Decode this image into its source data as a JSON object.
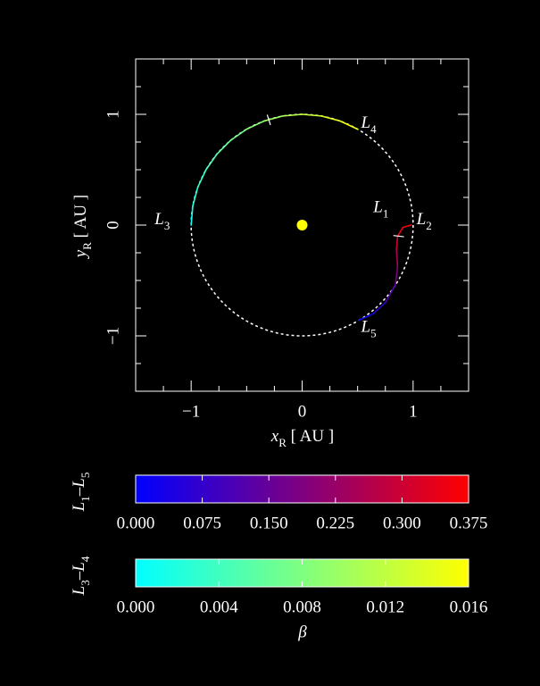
{
  "chart_data": {
    "type": "line",
    "xlabel": [
      "x",
      "R",
      " [ AU ]"
    ],
    "ylabel": [
      "y",
      "R",
      " [ AU ]"
    ],
    "xlim": [
      -1.5,
      1.5
    ],
    "ylim": [
      -1.5,
      1.5
    ],
    "xticks": [
      {
        "value": -1,
        "label": "−1"
      },
      0,
      1
    ],
    "yticks": [
      {
        "value": -1,
        "label": "−1"
      },
      0,
      1
    ],
    "minor_ticks": [
      -1.25,
      -0.75,
      -0.5,
      -0.25,
      0.25,
      0.5,
      0.75,
      1.25
    ],
    "orbit_radius": 1,
    "sun": {
      "x": 0,
      "y": 0,
      "color": "#ffff00"
    },
    "annotations": [
      {
        "label": [
          "L",
          "1"
        ],
        "x": 0.71,
        "y": 0.15
      },
      {
        "label": [
          "L",
          "2"
        ],
        "x": 1.1,
        "y": 0.04
      },
      {
        "label": [
          "L",
          "3"
        ],
        "x": -1.26,
        "y": 0.04
      },
      {
        "label": [
          "L",
          "4"
        ],
        "x": 0.6,
        "y": 0.91
      },
      {
        "label": [
          "L",
          "5"
        ],
        "x": 0.6,
        "y": -0.93
      }
    ],
    "series": [
      {
        "name": [
          "L",
          "1",
          "–L",
          "5"
        ],
        "colormap": [
          "#0000ff",
          "#ff0000"
        ],
        "x": [
          0.98,
          0.91,
          0.86,
          0.85,
          0.86,
          0.84,
          0.75,
          0.64,
          0.51
        ],
        "y": [
          0.0,
          -0.02,
          -0.1,
          -0.22,
          -0.38,
          -0.54,
          -0.7,
          -0.8,
          -0.86
        ],
        "beta": [
          0.375,
          0.36,
          0.33,
          0.28,
          0.22,
          0.15,
          0.09,
          0.04,
          0.0
        ],
        "marker": [
          0.87,
          -0.1
        ],
        "cbar_lim": [
          0,
          0.375
        ],
        "cbar_ticks": [
          {
            "value": 0,
            "label": "0.000"
          },
          0.075,
          {
            "value": 0.15,
            "label": "0.150"
          },
          0.225,
          {
            "value": 0.3,
            "label": "0.300"
          },
          0.375
        ]
      },
      {
        "name": [
          "L",
          "3",
          "–L",
          "4"
        ],
        "colormap": [
          "#00ffff",
          "#ffff00"
        ],
        "x": [
          -1,
          -0.985,
          -0.94,
          -0.866,
          -0.766,
          -0.643,
          -0.5,
          -0.342,
          -0.174,
          0,
          0.174,
          0.342,
          0.5
        ],
        "y": [
          0,
          0.174,
          0.342,
          0.5,
          0.643,
          0.766,
          0.866,
          0.94,
          0.985,
          1,
          0.985,
          0.94,
          0.866
        ],
        "beta": [
          0,
          0.0013,
          0.0027,
          0.004,
          0.0053,
          0.0067,
          0.008,
          0.0093,
          0.0107,
          0.012,
          0.0133,
          0.0147,
          0.016
        ],
        "marker": [
          -0.3,
          0.95
        ],
        "cbar_lim": [
          0,
          0.016
        ],
        "cbar_ticks": [
          {
            "value": 0,
            "label": "0.000"
          },
          0.004,
          0.008,
          0.012,
          0.016
        ]
      }
    ],
    "colorbar_xlabel": "β"
  }
}
